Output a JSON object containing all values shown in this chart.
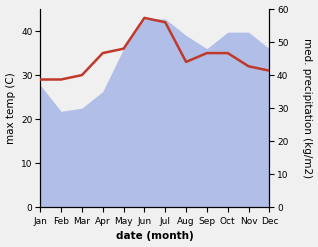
{
  "months": [
    "Jan",
    "Feb",
    "Mar",
    "Apr",
    "May",
    "Jun",
    "Jul",
    "Aug",
    "Sep",
    "Oct",
    "Nov",
    "Dec"
  ],
  "temp": [
    29,
    29,
    30,
    35,
    36,
    43,
    42,
    33,
    35,
    35,
    32,
    31
  ],
  "precip": [
    37,
    29,
    30,
    35,
    48,
    57,
    57,
    52,
    48,
    53,
    53,
    48
  ],
  "temp_color": "#c0392b",
  "precip_color": "#b0bee8",
  "temp_ylim": [
    0,
    45
  ],
  "precip_ylim": [
    0,
    60
  ],
  "temp_yticks": [
    0,
    10,
    20,
    30,
    40
  ],
  "precip_yticks": [
    0,
    10,
    20,
    30,
    40,
    50,
    60
  ],
  "xlabel": "date (month)",
  "ylabel_left": "max temp (C)",
  "ylabel_right": "med. precipitation (kg/m2)",
  "background_color": "#f0f0f0",
  "label_fontsize": 7.5,
  "tick_fontsize": 6.5
}
